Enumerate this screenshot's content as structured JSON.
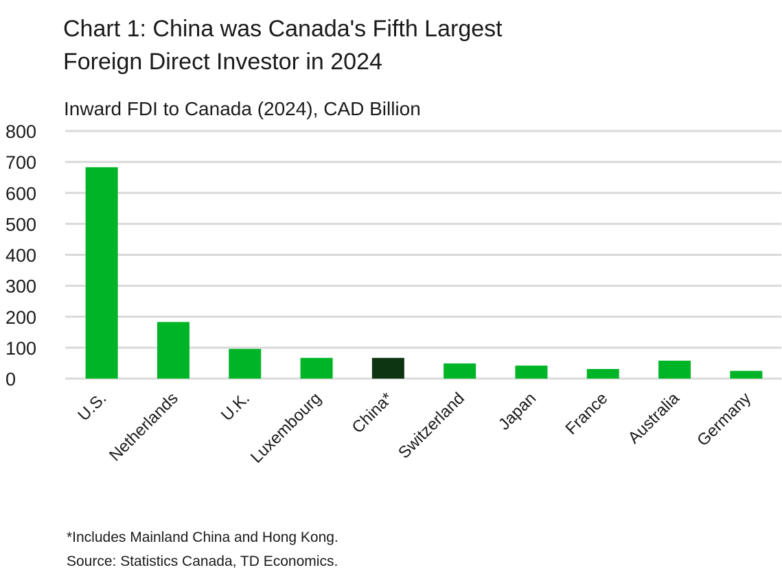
{
  "chart_data": {
    "type": "bar",
    "title": "Chart 1: China was Canada's Fifth Largest Foreign Direct Investor in 2024",
    "title_lines": [
      "Chart 1: China was Canada's Fifth Largest",
      "Foreign Direct Investor in 2024"
    ],
    "subtitle": "Inward FDI to Canada (2024), CAD Billion",
    "xlabel": "",
    "ylabel": "",
    "ylim": [
      0,
      800
    ],
    "yticks": [
      0,
      100,
      200,
      300,
      400,
      500,
      600,
      700,
      800
    ],
    "grid": true,
    "categories": [
      "U.S.",
      "Netherlands",
      "U.K.",
      "Luxembourg",
      "China*",
      "Switzerland",
      "Japan",
      "France",
      "Australia",
      "Germany"
    ],
    "values": [
      683,
      183,
      96,
      67,
      67,
      49,
      42,
      31,
      58,
      25
    ],
    "highlight": "China*",
    "colors": {
      "bar": "#00b427",
      "highlight": "#0d3512",
      "grid": "#d9d9d9"
    }
  },
  "footnotes": {
    "note": "*Includes Mainland China and Hong Kong.",
    "source": "Source:  Statistics Canada, TD Economics."
  }
}
